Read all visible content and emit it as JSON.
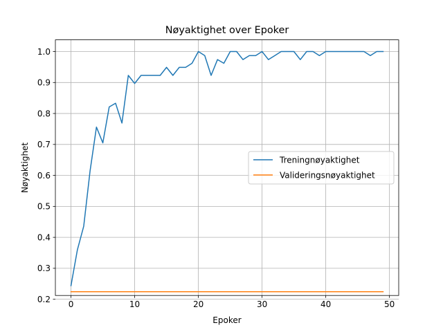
{
  "chart_data": {
    "type": "line",
    "title": "Nøyaktighet over Epoker",
    "xlabel": "Epoker",
    "ylabel": "Nøyaktighet",
    "xlim": [
      -2.45,
      51.45
    ],
    "ylim": [
      0.2122,
      1.0378
    ],
    "xticks": [
      0,
      10,
      20,
      30,
      40,
      50
    ],
    "yticks": [
      0.2,
      0.3,
      0.4,
      0.5,
      0.6,
      0.7,
      0.8,
      0.9,
      1.0
    ],
    "ytick_labels": [
      "0.2",
      "0.3",
      "0.4",
      "0.5",
      "0.6",
      "0.7",
      "0.8",
      "0.9",
      "1.0"
    ],
    "grid": true,
    "legend_position": "center-right",
    "series": [
      {
        "name": "Treningnøyaktighet",
        "color": "#1f77b4",
        "x": [
          0,
          1,
          2,
          3,
          4,
          5,
          6,
          7,
          8,
          9,
          10,
          11,
          12,
          13,
          14,
          15,
          16,
          17,
          18,
          19,
          20,
          21,
          22,
          23,
          24,
          25,
          26,
          27,
          28,
          29,
          30,
          31,
          32,
          33,
          34,
          35,
          36,
          37,
          38,
          39,
          40,
          41,
          42,
          43,
          44,
          45,
          46,
          47,
          48,
          49
        ],
        "values": [
          0.244,
          0.359,
          0.436,
          0.615,
          0.756,
          0.705,
          0.821,
          0.833,
          0.769,
          0.923,
          0.897,
          0.923,
          0.923,
          0.923,
          0.923,
          0.949,
          0.923,
          0.949,
          0.949,
          0.962,
          1.0,
          0.987,
          0.923,
          0.974,
          0.962,
          1.0,
          1.0,
          0.974,
          0.987,
          0.987,
          1.0,
          0.974,
          0.987,
          1.0,
          1.0,
          1.0,
          0.974,
          1.0,
          1.0,
          0.987,
          1.0,
          1.0,
          1.0,
          1.0,
          1.0,
          1.0,
          1.0,
          0.987,
          1.0,
          1.0
        ]
      },
      {
        "name": "Valideringsnøyaktighet",
        "color": "#ff7f0e",
        "x": [
          0,
          1,
          2,
          3,
          4,
          5,
          6,
          7,
          8,
          9,
          10,
          11,
          12,
          13,
          14,
          15,
          16,
          17,
          18,
          19,
          20,
          21,
          22,
          23,
          24,
          25,
          26,
          27,
          28,
          29,
          30,
          31,
          32,
          33,
          34,
          35,
          36,
          37,
          38,
          39,
          40,
          41,
          42,
          43,
          44,
          45,
          46,
          47,
          48,
          49
        ],
        "values": [
          0.2245,
          0.2245,
          0.2245,
          0.2245,
          0.2245,
          0.2245,
          0.2245,
          0.2245,
          0.2245,
          0.2245,
          0.2245,
          0.2245,
          0.2245,
          0.2245,
          0.2245,
          0.2245,
          0.2245,
          0.2245,
          0.2245,
          0.2245,
          0.2245,
          0.2245,
          0.2245,
          0.2245,
          0.2245,
          0.2245,
          0.2245,
          0.2245,
          0.2245,
          0.2245,
          0.2245,
          0.2245,
          0.2245,
          0.2245,
          0.2245,
          0.2245,
          0.2245,
          0.2245,
          0.2245,
          0.2245,
          0.2245,
          0.2245,
          0.2245,
          0.2245,
          0.2245,
          0.2245,
          0.2245,
          0.2245,
          0.2245,
          0.2245
        ]
      }
    ]
  }
}
